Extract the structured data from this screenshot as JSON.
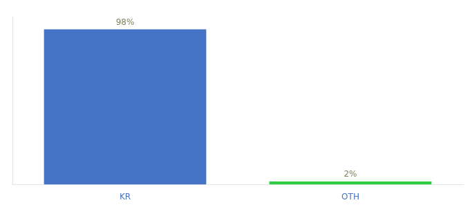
{
  "chart_data": {
    "type": "bar",
    "categories": [
      "KR",
      "OTH"
    ],
    "values": [
      98,
      2
    ],
    "value_labels": [
      "98%",
      "2%"
    ],
    "colors": [
      "#4472c4",
      "#2ecc40"
    ],
    "ylim": [
      0,
      106
    ],
    "grid": false,
    "data_labels": true,
    "tick_labels": "x"
  }
}
